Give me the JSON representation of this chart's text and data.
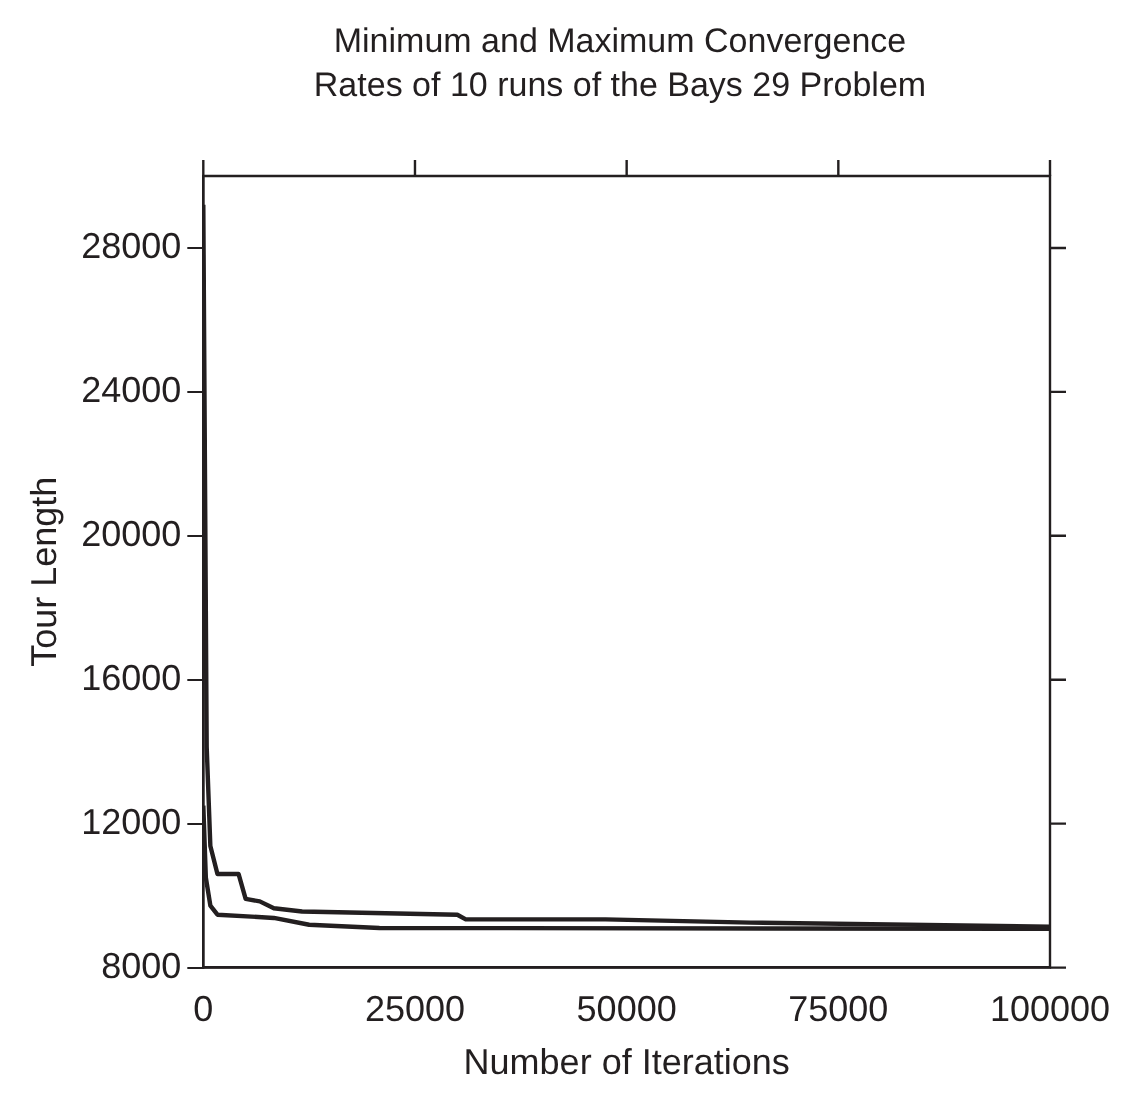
{
  "chart_data": {
    "type": "line",
    "title": "Minimum and Maximum Convergence Rates of 10 runs of the Bays 29 Problem",
    "xlabel": "Number of Iterations",
    "ylabel": "Tour Length",
    "series": [
      {
        "color": "#231f20",
        "x": [
          0,
          400,
          833,
          1670,
          4170,
          5000,
          6670,
          8330,
          11670,
          30000,
          31000,
          47500,
          64600,
          100000
        ],
        "values": [
          29200,
          14130,
          11380,
          10600,
          10600,
          9910,
          9840,
          9650,
          9560,
          9470,
          9340,
          9340,
          9250,
          9140
        ]
      },
      {
        "color": "#231f20",
        "x": [
          0,
          300,
          833,
          1670,
          8330,
          12500,
          20800,
          100000
        ],
        "values": [
          12500,
          10500,
          9720,
          9470,
          9380,
          9190,
          9100,
          9080
        ]
      }
    ],
    "xlim": [
      0,
      100000
    ],
    "xticks": [
      0,
      25000,
      50000,
      75000,
      100000
    ],
    "ylim": [
      8000,
      30000
    ],
    "yticks": [
      8000,
      12000,
      16000,
      20000,
      24000,
      28000
    ],
    "grid": false,
    "legend": false,
    "marker": "none",
    "line_style": "solid"
  }
}
